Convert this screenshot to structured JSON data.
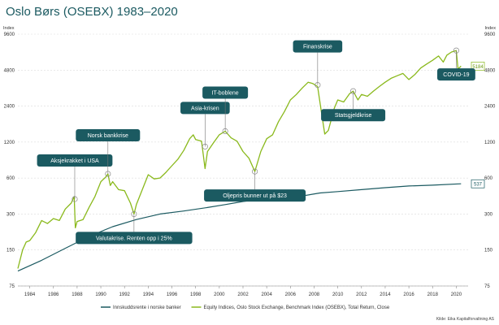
{
  "chart_data": {
    "type": "line",
    "title": "Oslo Børs (OSEBX) 1983–2020",
    "source": "Kilde: Eika Kapitalforvaltning AS",
    "y_axis_label_left": "Index",
    "y_axis_label_right": "Index",
    "y_scale": "log",
    "ylim": [
      75,
      9600
    ],
    "y_ticks": [
      75,
      150,
      300,
      600,
      1200,
      2400,
      4800,
      9600
    ],
    "y_tick_labels": [
      "75",
      "150",
      "300",
      "600",
      "1200",
      "2400",
      "4800",
      "9600"
    ],
    "xlim": [
      1983,
      2021
    ],
    "x_ticks": [
      1984,
      1986,
      1988,
      1990,
      1992,
      1994,
      1996,
      1998,
      2000,
      2002,
      2004,
      2006,
      2008,
      2010,
      2012,
      2014,
      2016,
      2018,
      2020
    ],
    "x_tick_labels": [
      "1984",
      "1986",
      "1988",
      "1990",
      "1992",
      "1994",
      "1996",
      "1998",
      "2000",
      "2002",
      "2004",
      "2006",
      "2008",
      "2010",
      "2012",
      "2014",
      "2016",
      "2018",
      "2020"
    ],
    "grid": true,
    "legend_position": "bottom",
    "series": [
      {
        "name": "Innskuddsrente i norske banker",
        "color": "#1b5a61",
        "last_value_label": "537",
        "points": [
          [
            1983.0,
            100
          ],
          [
            1985.0,
            123
          ],
          [
            1987.0,
            155
          ],
          [
            1989.0,
            195
          ],
          [
            1991.0,
            235
          ],
          [
            1993.0,
            270
          ],
          [
            1995.0,
            300
          ],
          [
            1997.0,
            318
          ],
          [
            1999.0,
            340
          ],
          [
            2000.5,
            360
          ],
          [
            2002.0,
            382
          ],
          [
            2003.5,
            400
          ],
          [
            2005.0,
            408
          ],
          [
            2007.0,
            425
          ],
          [
            2008.5,
            450
          ],
          [
            2010.0,
            462
          ],
          [
            2012.0,
            480
          ],
          [
            2014.0,
            498
          ],
          [
            2016.0,
            515
          ],
          [
            2018.0,
            523
          ],
          [
            2020.4,
            537
          ]
        ]
      },
      {
        "name": "Equity Indices, Oslo Stock Exchange, Benchmark Index (OSEBX), Total Return, Close",
        "color": "#8ab91c",
        "last_value_label": "5184",
        "points": [
          [
            1983.0,
            105
          ],
          [
            1983.4,
            150
          ],
          [
            1983.7,
            175
          ],
          [
            1984.0,
            180
          ],
          [
            1984.5,
            210
          ],
          [
            1985.0,
            265
          ],
          [
            1985.5,
            250
          ],
          [
            1986.0,
            275
          ],
          [
            1986.5,
            265
          ],
          [
            1987.0,
            330
          ],
          [
            1987.5,
            370
          ],
          [
            1987.75,
            420
          ],
          [
            1987.85,
            230
          ],
          [
            1988.0,
            260
          ],
          [
            1988.5,
            270
          ],
          [
            1989.0,
            340
          ],
          [
            1989.5,
            420
          ],
          [
            1990.0,
            560
          ],
          [
            1990.4,
            610
          ],
          [
            1990.6,
            650
          ],
          [
            1990.8,
            520
          ],
          [
            1991.0,
            560
          ],
          [
            1991.5,
            480
          ],
          [
            1992.0,
            470
          ],
          [
            1992.5,
            370
          ],
          [
            1992.8,
            300
          ],
          [
            1993.0,
            360
          ],
          [
            1993.5,
            480
          ],
          [
            1994.0,
            640
          ],
          [
            1994.5,
            590
          ],
          [
            1995.0,
            600
          ],
          [
            1995.5,
            670
          ],
          [
            1996.0,
            760
          ],
          [
            1996.5,
            860
          ],
          [
            1997.0,
            1020
          ],
          [
            1997.5,
            1280
          ],
          [
            1997.8,
            1380
          ],
          [
            1998.0,
            1260
          ],
          [
            1998.5,
            1220
          ],
          [
            1998.8,
            720
          ],
          [
            1999.0,
            1000
          ],
          [
            1999.5,
            1180
          ],
          [
            2000.0,
            1380
          ],
          [
            2000.5,
            1480
          ],
          [
            2001.0,
            1300
          ],
          [
            2001.5,
            1220
          ],
          [
            2002.0,
            1000
          ],
          [
            2002.5,
            880
          ],
          [
            2003.0,
            680
          ],
          [
            2003.5,
            1000
          ],
          [
            2004.0,
            1280
          ],
          [
            2004.5,
            1380
          ],
          [
            2005.0,
            1780
          ],
          [
            2005.5,
            2160
          ],
          [
            2006.0,
            2700
          ],
          [
            2006.5,
            3000
          ],
          [
            2007.0,
            3400
          ],
          [
            2007.5,
            3800
          ],
          [
            2007.9,
            3700
          ],
          [
            2008.3,
            3500
          ],
          [
            2008.6,
            2200
          ],
          [
            2008.9,
            1400
          ],
          [
            2009.2,
            1500
          ],
          [
            2009.7,
            2300
          ],
          [
            2010.0,
            2700
          ],
          [
            2010.5,
            2600
          ],
          [
            2011.0,
            3050
          ],
          [
            2011.3,
            3200
          ],
          [
            2011.7,
            2700
          ],
          [
            2012.0,
            3000
          ],
          [
            2012.5,
            2900
          ],
          [
            2013.0,
            3200
          ],
          [
            2013.5,
            3500
          ],
          [
            2014.0,
            3800
          ],
          [
            2014.5,
            4100
          ],
          [
            2015.0,
            4300
          ],
          [
            2015.5,
            4500
          ],
          [
            2016.0,
            4000
          ],
          [
            2016.5,
            4400
          ],
          [
            2017.0,
            5000
          ],
          [
            2017.5,
            5400
          ],
          [
            2018.0,
            5800
          ],
          [
            2018.5,
            6300
          ],
          [
            2018.9,
            5600
          ],
          [
            2019.2,
            6400
          ],
          [
            2019.6,
            6800
          ],
          [
            2020.0,
            7000
          ],
          [
            2020.15,
            4900
          ],
          [
            2020.4,
            5184
          ]
        ]
      }
    ],
    "annotations": [
      {
        "text": "Aksjekrakket i USA",
        "x": 1987.8,
        "y": 400,
        "label_side": "above"
      },
      {
        "text": "Norsk bankkrise",
        "x": 1990.6,
        "y": 650,
        "label_side": "above"
      },
      {
        "text": "Valutakrise. Renten opp i 25%",
        "x": 1992.8,
        "y": 300,
        "label_side": "below"
      },
      {
        "text": "Asia-krisen",
        "x": 1998.8,
        "y": 1100,
        "label_side": "above"
      },
      {
        "text": "IT-boblene",
        "x": 2000.5,
        "y": 1480,
        "label_side": "above"
      },
      {
        "text": "Oljepris bunner ut på $23",
        "x": 2003.0,
        "y": 680,
        "label_side": "below"
      },
      {
        "text": "Finanskrise",
        "x": 2008.3,
        "y": 3600,
        "label_side": "above"
      },
      {
        "text": "Statsgjeldkrise",
        "x": 2011.3,
        "y": 3200,
        "label_side": "below"
      },
      {
        "text": "COVID-19",
        "x": 2020.0,
        "y": 7000,
        "label_side": "below"
      }
    ]
  }
}
